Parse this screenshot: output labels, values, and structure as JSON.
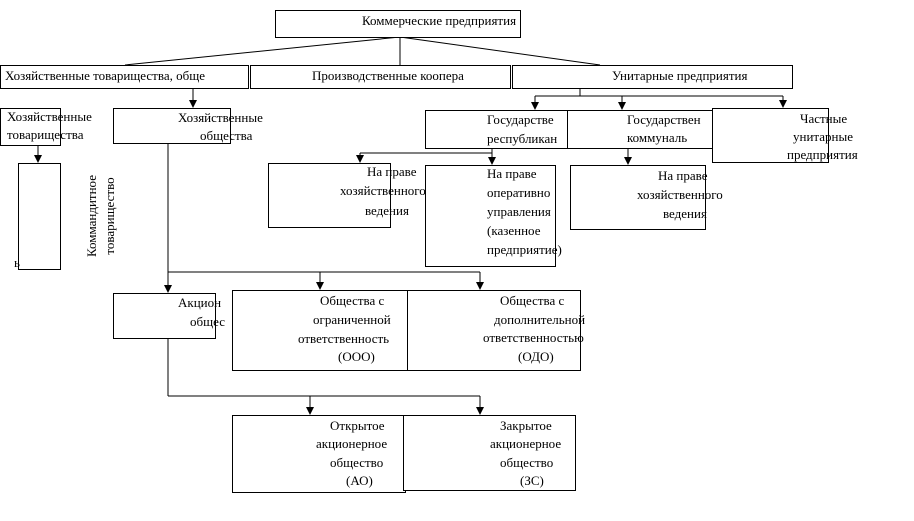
{
  "nodes": [
    {
      "lines": [
        "Коммерческие предприятия"
      ]
    },
    {
      "lines": [
        "Хозяйственные товарищества, обще"
      ]
    },
    {
      "lines": [
        "Производственные коопера"
      ]
    },
    {
      "lines": [
        "Унитарные предприятия"
      ]
    },
    {
      "lines": [
        "Хозяйственные",
        "товарищества"
      ]
    },
    {
      "lines": [
        "Хозяйственные",
        "общества"
      ]
    },
    {
      "lines": [
        "Государстве",
        "республикан"
      ]
    },
    {
      "lines": [
        "Государствен",
        "коммуналь"
      ]
    },
    {
      "lines": [
        "Частные",
        "унитарные",
        "предприятия"
      ]
    },
    {
      "lines": [
        "Коммандитное",
        "товарищество"
      ]
    },
    {
      "lines": [
        "ь"
      ]
    },
    {
      "lines": [
        "На праве",
        "хозяйственного",
        "ведения"
      ]
    },
    {
      "lines": [
        "На праве",
        "оперативно",
        "управления",
        "(казенное",
        "предприятие)"
      ]
    },
    {
      "lines": [
        "На праве",
        "хозяйственного",
        "ведения"
      ]
    },
    {
      "lines": [
        "Акцион",
        "общес"
      ]
    },
    {
      "lines": [
        "Общества с",
        "ограниченной",
        "ответственность",
        "(ООО)"
      ]
    },
    {
      "lines": [
        "Общества с",
        "дополнительной",
        "ответственностью",
        "(ОДО)"
      ]
    },
    {
      "lines": [
        "Открытое",
        "акционерное",
        "общество",
        "(АО)"
      ]
    },
    {
      "lines": [
        "Закрытое",
        "акционерное",
        "общество",
        "(ЗС)"
      ]
    }
  ]
}
